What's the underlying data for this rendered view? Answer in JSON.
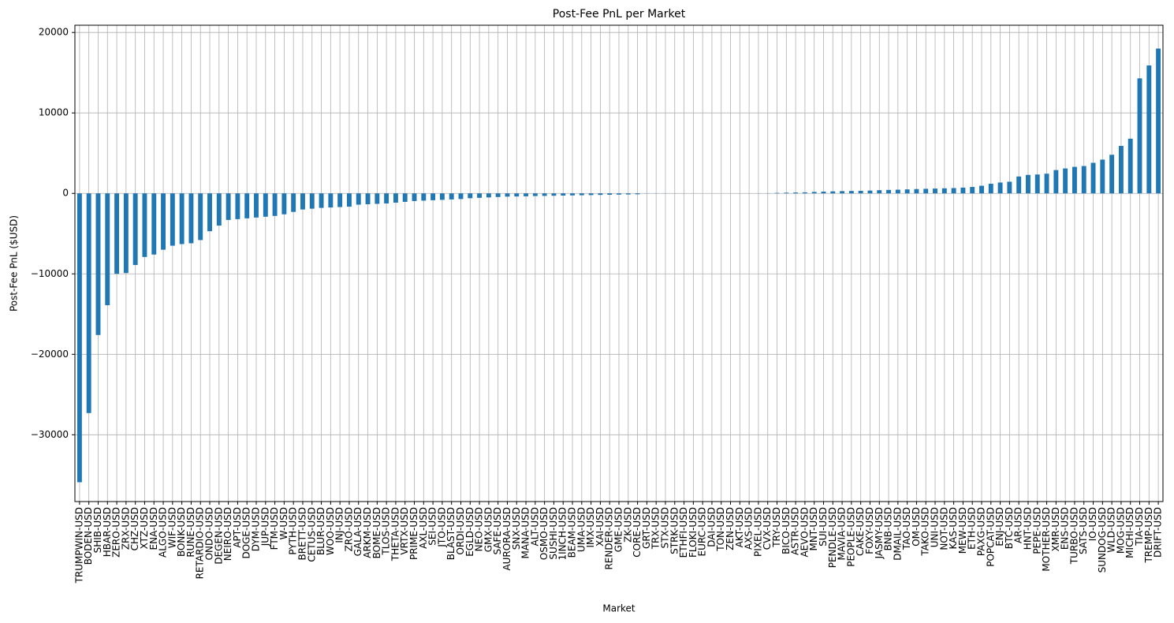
{
  "chart_data": {
    "type": "bar",
    "title": "Post-Fee PnL per Market",
    "xlabel": "Market",
    "ylabel": "Post-Fee PnL ($USD)",
    "categories": [
      "TRUMPWIN-USD",
      "BODEN-USD",
      "SHIB-USD",
      "HBAR-USD",
      "ZERO-USD",
      "ZRX-USD",
      "CHZ-USD",
      "XTZ-USD",
      "ENA-USD",
      "ALGO-USD",
      "WIF-USD",
      "BONK-USD",
      "RUNE-USD",
      "RETARDIO-USD",
      "ONDO-USD",
      "DEGEN-USD",
      "NEIRO-USD",
      "APT-USD",
      "DOGE-USD",
      "DYM-USD",
      "JUP-USD",
      "FTM-USD",
      "W-USD",
      "PYTH-USD",
      "BRETT-USD",
      "CETUS-USD",
      "BLUR-USD",
      "WOO-USD",
      "INJ-USD",
      "ZRO-USD",
      "GALA-USD",
      "ARKM-USD",
      "BOME-USD",
      "TLOS-USD",
      "THETA-USD",
      "VRTX-USD",
      "PRIME-USD",
      "AXL-USD",
      "SEI-USD",
      "JTO-USD",
      "BLAST-USD",
      "ORDI-USD",
      "EGLD-USD",
      "NEO-USD",
      "GMX-USD",
      "SAFE-USD",
      "AURORA-USD",
      "SNX-USD",
      "MANA-USD",
      "ALT-USD",
      "OSMO-USD",
      "SUSHI-USD",
      "1INCH-USD",
      "BEAM-USD",
      "UMA-USD",
      "IMX-USD",
      "XAI-USD",
      "RENDER-USD",
      "GME-USD",
      "ZK-USD",
      "CORE-USD",
      "GRT-USD",
      "TRX-USD",
      "STX-USD",
      "STRK-USD",
      "ETHFI-USD",
      "FLOKI-USD",
      "EURC-USD",
      "DAI-USD",
      "TON-USD",
      "ZEN-USD",
      "AKT-USD",
      "AXS-USD",
      "PIXEL-USD",
      "CVX-USD",
      "TRY-USD",
      "BICO-USD",
      "ASTR-USD",
      "AEVO-USD",
      "MNT-USD",
      "SUI-USD",
      "PENDLE-USD",
      "MAVIA-USD",
      "PEOPLE-USD",
      "CAKE-USD",
      "FOXY-USD",
      "JASMY-USD",
      "BNB-USD",
      "DMAIL-USD",
      "TAO-USD",
      "OM-USD",
      "TAKO-USD",
      "UNI-USD",
      "NOT-USD",
      "KAS-USD",
      "MEW-USD",
      "ETH-USD",
      "PAXG-USD",
      "POPCAT-USD",
      "ENJ-USD",
      "BTC-USD",
      "AR-USD",
      "HNT-USD",
      "PEPE-USD",
      "MOTHER-USD",
      "XMR-USD",
      "ENS-USD",
      "TURBO-USD",
      "SATS-USD",
      "IO-USD",
      "SUNDOG-USD",
      "WLD-USD",
      "MOG-USD",
      "MICHI-USD",
      "TIA-USD",
      "TREMP-USD",
      "DRIFT-USD"
    ],
    "values": [
      -35900,
      -27300,
      -17600,
      -13900,
      -10000,
      -9900,
      -8900,
      -7900,
      -7600,
      -7000,
      -6500,
      -6300,
      -6200,
      -5800,
      -4700,
      -4000,
      -3300,
      -3200,
      -3100,
      -3000,
      -2900,
      -2800,
      -2600,
      -2300,
      -2000,
      -1900,
      -1800,
      -1750,
      -1700,
      -1650,
      -1400,
      -1350,
      -1300,
      -1250,
      -1150,
      -1050,
      -950,
      -900,
      -850,
      -800,
      -750,
      -700,
      -600,
      -550,
      -500,
      -450,
      -400,
      -380,
      -360,
      -330,
      -310,
      -290,
      -270,
      -250,
      -230,
      -210,
      -190,
      -170,
      -150,
      -130,
      -110,
      -20,
      -15,
      -10,
      -8,
      -5,
      -3,
      -1,
      0,
      0,
      2,
      5,
      8,
      12,
      20,
      60,
      90,
      110,
      130,
      180,
      220,
      250,
      280,
      300,
      320,
      350,
      400,
      430,
      460,
      500,
      540,
      570,
      600,
      630,
      660,
      720,
      800,
      950,
      1200,
      1350,
      1450,
      2100,
      2300,
      2350,
      2450,
      2900,
      3100,
      3300,
      3400,
      3800,
      4200,
      4800,
      5900,
      6800,
      14300,
      15900,
      18000
    ],
    "color": "#1f77b4",
    "ylim": [
      -38300,
      20900
    ],
    "yticks": [
      {
        "value": -30000,
        "label": "−30000"
      },
      {
        "value": -20000,
        "label": "−20000"
      },
      {
        "value": -10000,
        "label": "−10000"
      },
      0,
      10000,
      20000
    ],
    "grid": true
  }
}
